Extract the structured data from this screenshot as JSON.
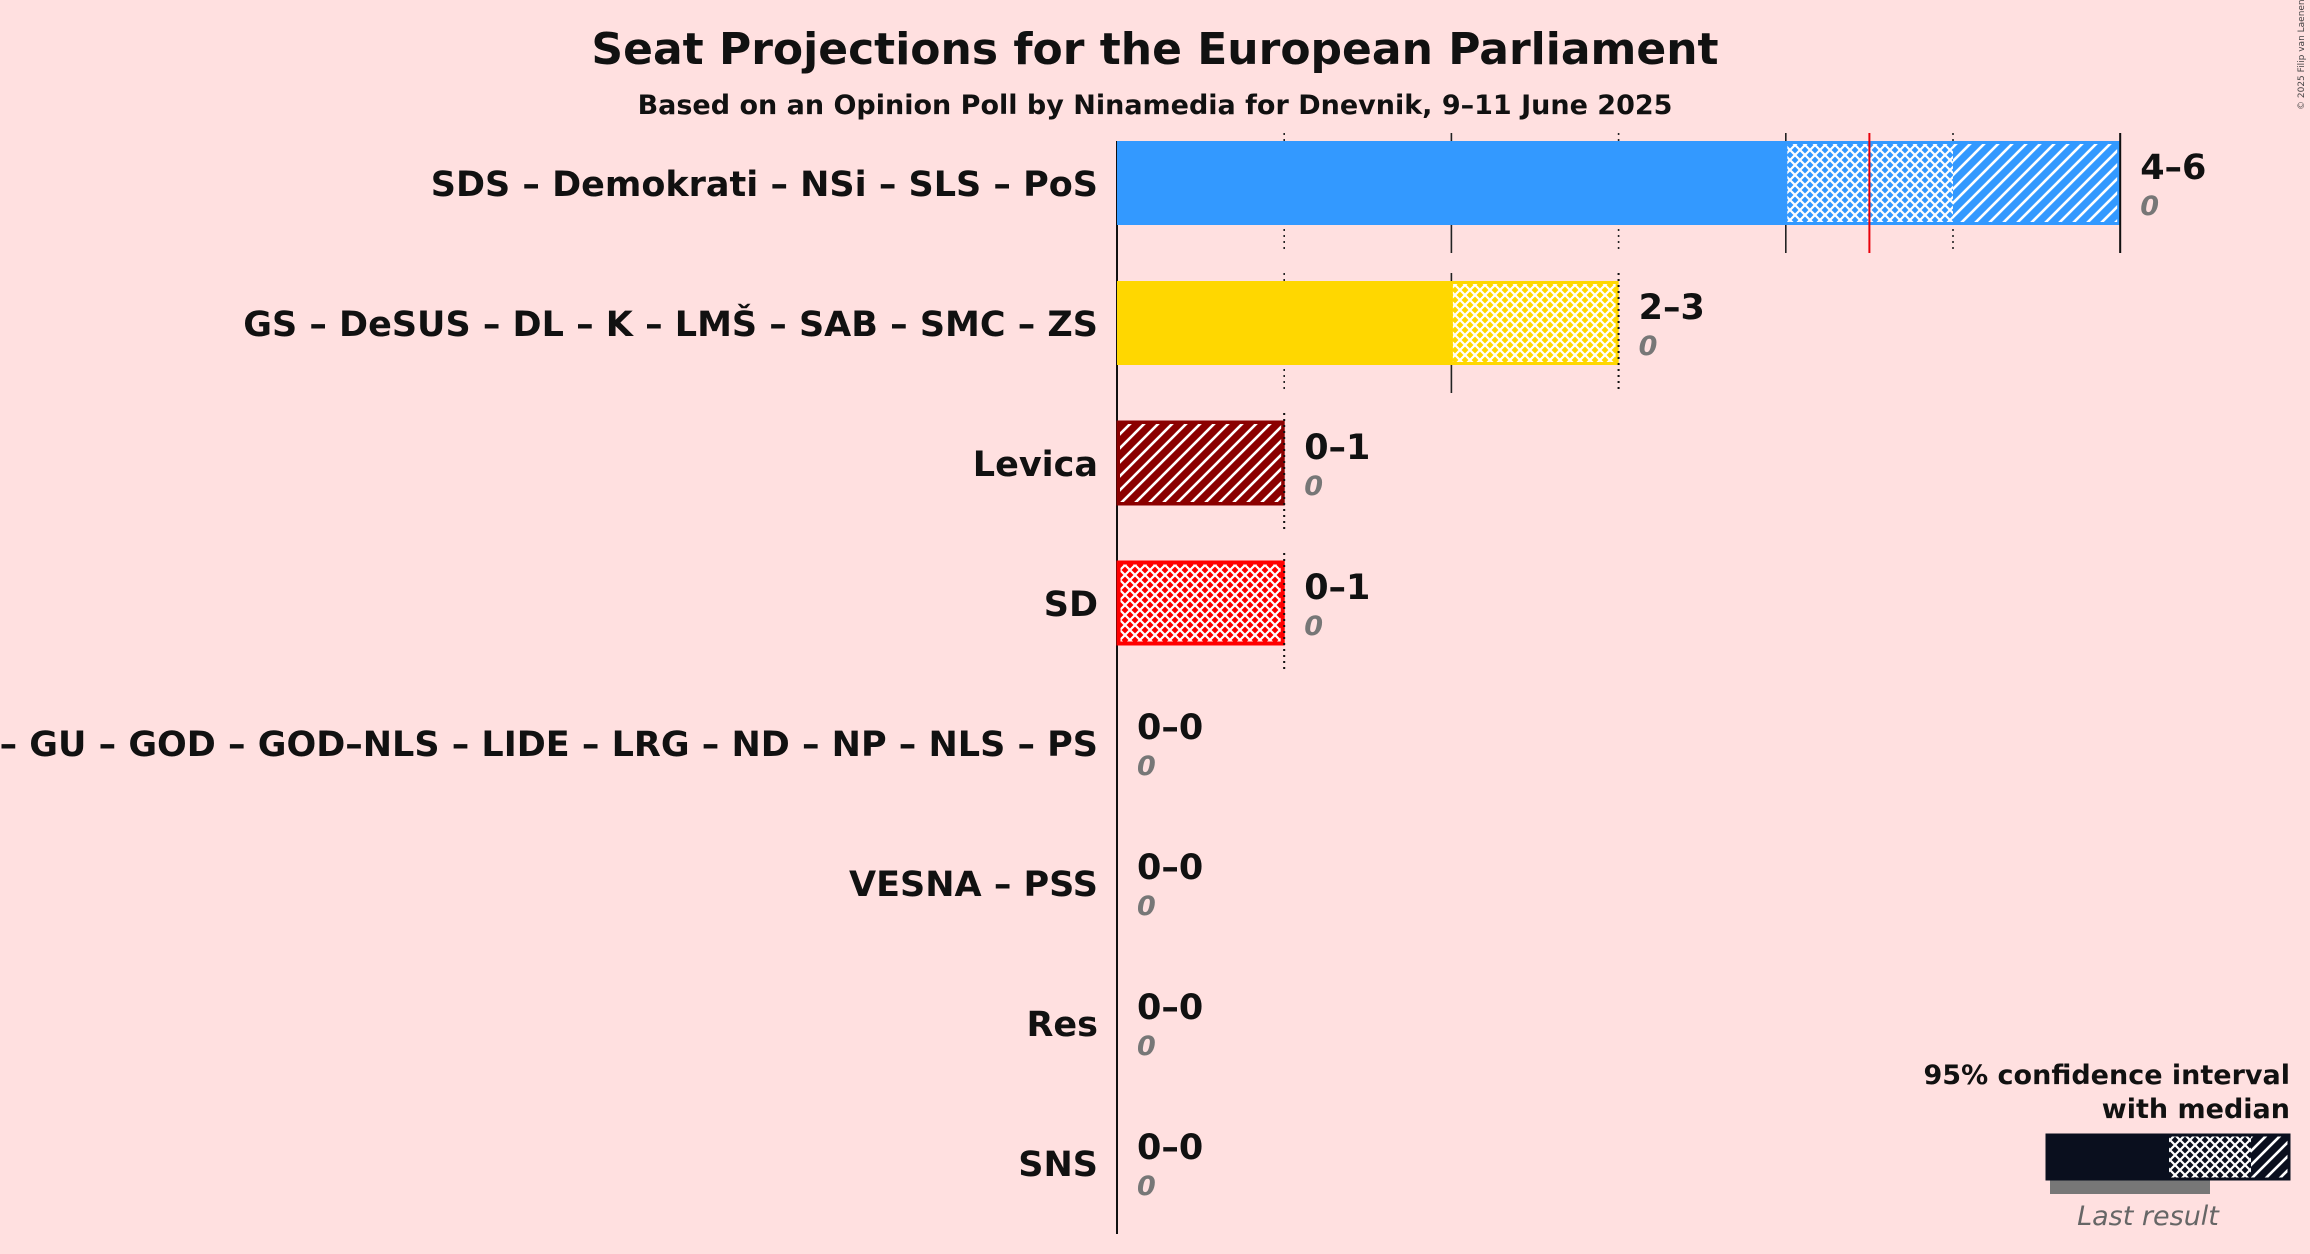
{
  "title": "Seat Projections for the European Parliament",
  "subtitle": "Based on an Opinion Poll by Ninamedia for Dnevnik, 9–11 June 2025",
  "copyright": "© 2025 Filip van Laenen",
  "legend": {
    "line1": "95% confidence interval",
    "line2": "with median",
    "last_result": "Last result"
  },
  "chart_data": {
    "type": "bar",
    "orientation": "horizontal",
    "title": "Seat Projections for the European Parliament",
    "subtitle": "Based on an Opinion Poll by Ninamedia for Dnevnik, 9–11 June 2025",
    "xlim": [
      0,
      6
    ],
    "grid": true,
    "legend_position": "bottom-right",
    "series": [
      {
        "party": "SDS – Demokrati – NSi – SLS – PoS",
        "low": 4,
        "median": 4.5,
        "high": 6,
        "range_label": "4–6",
        "last": 0,
        "last_label": "0",
        "color": "#3399FF",
        "edge": "#3399FF"
      },
      {
        "party": "GS – DeSUS – DL – K – LMŠ – SAB – SMC – ZS",
        "low": 2,
        "median": 2,
        "high": 3,
        "range_label": "2–3",
        "last": 0,
        "last_label": "0",
        "color": "#FFD700",
        "edge": "#FFD700"
      },
      {
        "party": "Levica",
        "low": 0,
        "median": 0,
        "high": 1,
        "range_label": "0–1",
        "last": 0,
        "last_label": "0",
        "color": "#8B0000",
        "edge": "#8B0000"
      },
      {
        "party": "SD",
        "low": 0,
        "median": 0,
        "high": 1,
        "range_label": "0–1",
        "last": 0,
        "last_label": "0",
        "color": "#FF0000",
        "edge": "#FF0000"
      },
      {
        "party": "DD – GU – GOD – GOD–NLS – LIDE – LRG – ND – NP – NLS – PS",
        "low": 0,
        "median": 0,
        "high": 0,
        "range_label": "0–0",
        "last": 0,
        "last_label": "0",
        "color": "#888888",
        "edge": "#888888"
      },
      {
        "party": "VESNA – PSS",
        "low": 0,
        "median": 0,
        "high": 0,
        "range_label": "0–0",
        "last": 0,
        "last_label": "0",
        "color": "#888888",
        "edge": "#888888"
      },
      {
        "party": "Res",
        "low": 0,
        "median": 0,
        "high": 0,
        "range_label": "0–0",
        "last": 0,
        "last_label": "0",
        "color": "#888888",
        "edge": "#888888"
      },
      {
        "party": "SNS",
        "low": 0,
        "median": 0,
        "high": 0,
        "range_label": "0–0",
        "last": 0,
        "last_label": "0",
        "color": "#888888",
        "edge": "#888888"
      }
    ]
  }
}
